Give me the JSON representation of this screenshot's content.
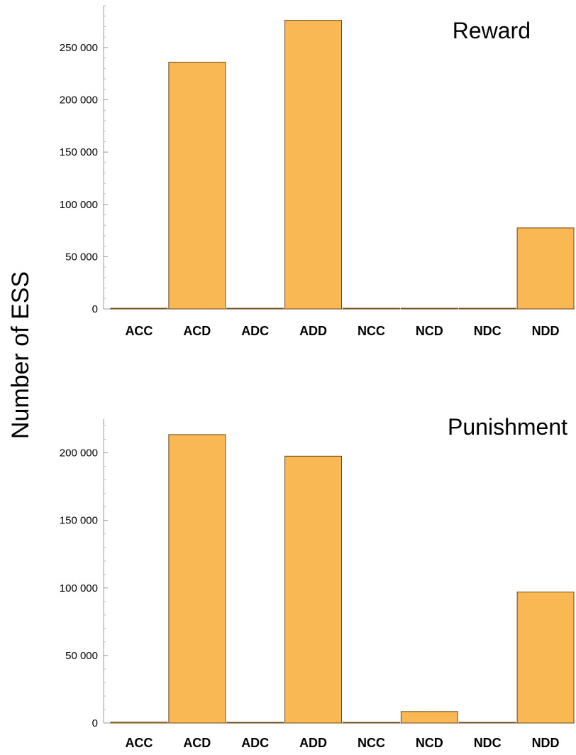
{
  "ylabel": "Number of ESS",
  "colors": {
    "bar": "#f9b853",
    "bar_edge": "#6b4a1a",
    "axis": "#999999"
  },
  "chart_data": [
    {
      "type": "bar",
      "title": "Reward",
      "categories": [
        "ACC",
        "ACD",
        "ADC",
        "ADD",
        "NCC",
        "NCD",
        "NDC",
        "NDD"
      ],
      "values": [
        600,
        236000,
        0,
        276000,
        0,
        0,
        0,
        77500
      ],
      "ylim": [
        0,
        290000
      ],
      "yticks": [
        0,
        50000,
        100000,
        150000,
        200000,
        250000
      ],
      "ytick_labels": [
        "0",
        "50 000",
        "100 000",
        "150 000",
        "200 000",
        "250 000"
      ],
      "ylabel": "Number of ESS",
      "xlabel": "",
      "grid": false
    },
    {
      "type": "bar",
      "title": "Punishment",
      "categories": [
        "ACC",
        "ACD",
        "ADC",
        "ADD",
        "NCC",
        "NCD",
        "NDC",
        "NDD"
      ],
      "values": [
        700,
        213500,
        0,
        197500,
        0,
        8500,
        0,
        97000
      ],
      "ylim": [
        0,
        225000
      ],
      "yticks": [
        0,
        50000,
        100000,
        150000,
        200000
      ],
      "ytick_labels": [
        "0",
        "50 000",
        "100 000",
        "150 000",
        "200 000"
      ],
      "ylabel": "Number of ESS",
      "xlabel": "",
      "grid": false
    }
  ]
}
